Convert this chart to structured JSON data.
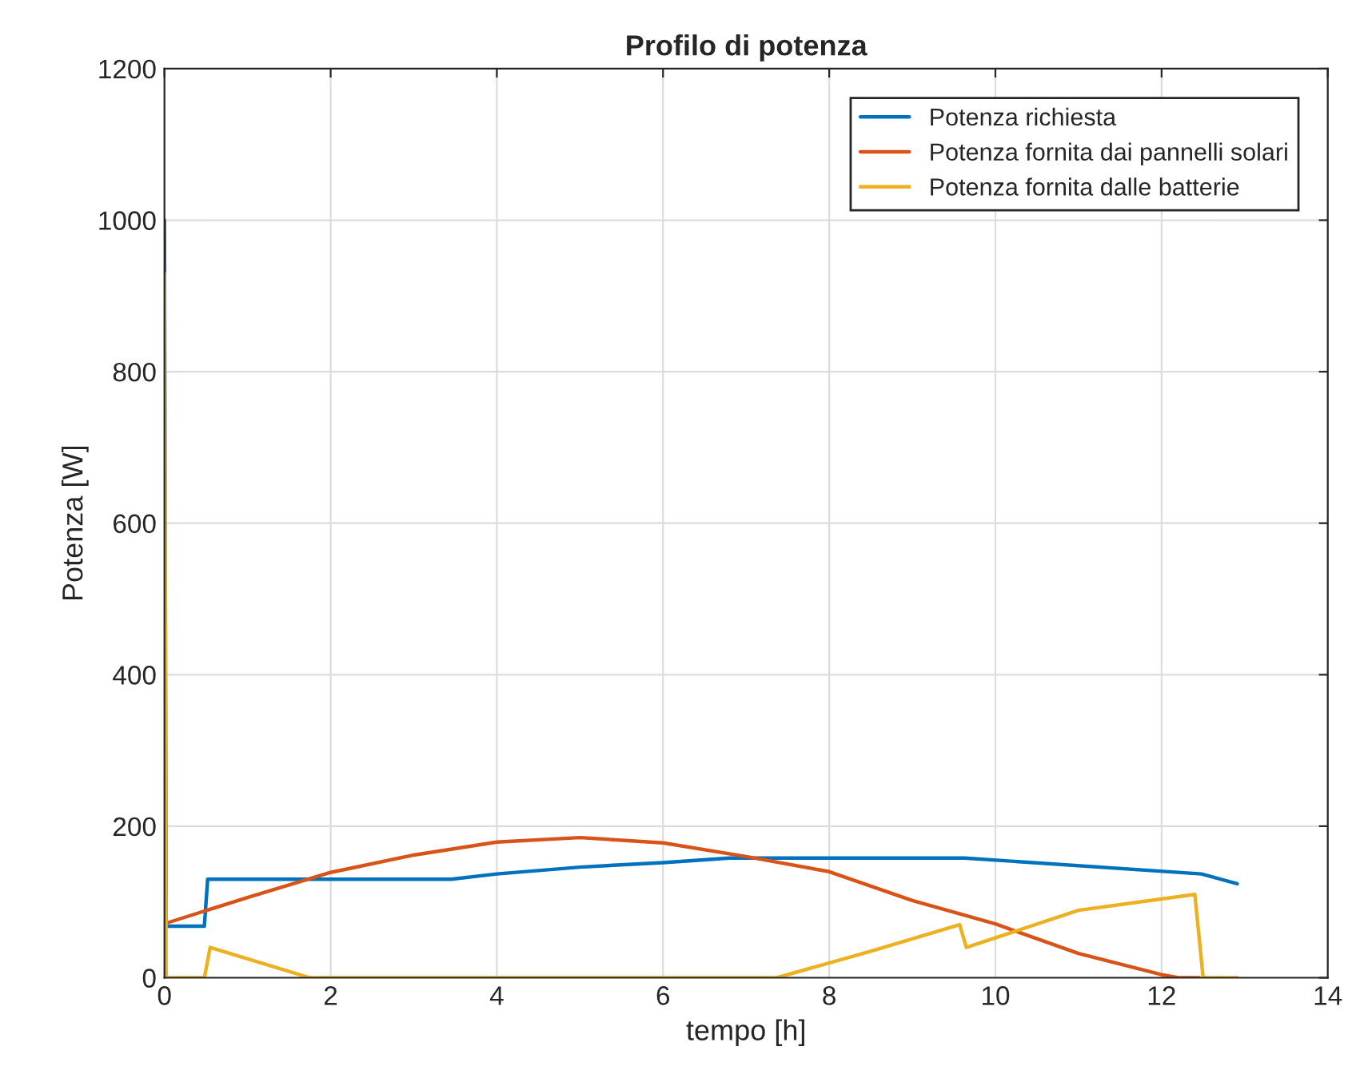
{
  "chart_data": {
    "type": "line",
    "title": "Profilo di potenza",
    "xlabel": "tempo [h]",
    "ylabel": "Potenza [W]",
    "xlim": [
      0,
      14
    ],
    "xticks": [
      0,
      2,
      4,
      6,
      8,
      10,
      12,
      14
    ],
    "ylim": [
      0,
      1200
    ],
    "yticks": [
      0,
      200,
      400,
      600,
      800,
      1000,
      1200
    ],
    "grid": true,
    "legend": "top right",
    "series": [
      {
        "name": "Potenza richiesta",
        "color": "#0072bd",
        "x": [
          0,
          0.02,
          0.48,
          0.52,
          3.45,
          4,
          5,
          6,
          6.8,
          9.63,
          12.48,
          12.91
        ],
        "values": [
          1000,
          68,
          68,
          130,
          130,
          137,
          146,
          152,
          158,
          158,
          137,
          124
        ]
      },
      {
        "name": "Potenza fornita dai pannelli solari",
        "color": "#d95319",
        "x": [
          0.02,
          1,
          2,
          3,
          4,
          5,
          6,
          7,
          8,
          9,
          10,
          11,
          12,
          12.2,
          12.45
        ],
        "values": [
          72,
          106,
          139,
          162,
          179,
          185,
          178,
          160,
          140,
          102,
          71,
          32,
          4,
          0,
          0
        ]
      },
      {
        "name": "Potenza fornita dalle batterie",
        "color": "#edb120",
        "x": [
          0,
          0.02,
          0.48,
          0.55,
          1.75,
          7.37,
          8.5,
          9.57,
          9.65,
          11,
          12.4,
          12.5,
          12.91
        ],
        "values": [
          930,
          0,
          0,
          40,
          0,
          0,
          35,
          70,
          40,
          89,
          110,
          0,
          0
        ]
      }
    ]
  }
}
